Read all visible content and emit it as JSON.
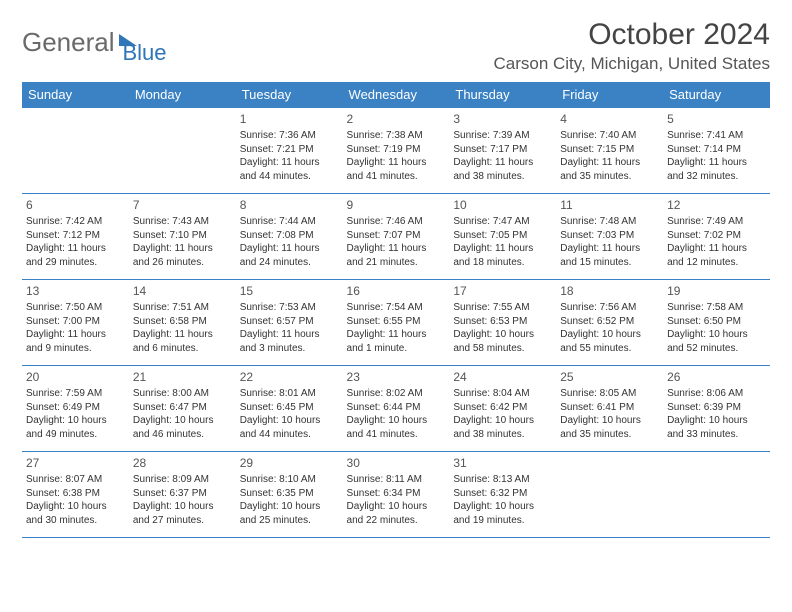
{
  "logo": {
    "text_gray": "General",
    "text_blue": "Blue"
  },
  "title": "October 2024",
  "location": "Carson City, Michigan, United States",
  "colors": {
    "header_bg": "#3a82c4",
    "header_text": "#ffffff",
    "border": "#3a82c4",
    "body_text": "#333333",
    "logo_gray": "#6a6a6a",
    "logo_blue": "#2f76b8"
  },
  "day_headers": [
    "Sunday",
    "Monday",
    "Tuesday",
    "Wednesday",
    "Thursday",
    "Friday",
    "Saturday"
  ],
  "weeks": [
    [
      null,
      null,
      {
        "n": "1",
        "sr": "Sunrise: 7:36 AM",
        "ss": "Sunset: 7:21 PM",
        "dl": "Daylight: 11 hours and 44 minutes."
      },
      {
        "n": "2",
        "sr": "Sunrise: 7:38 AM",
        "ss": "Sunset: 7:19 PM",
        "dl": "Daylight: 11 hours and 41 minutes."
      },
      {
        "n": "3",
        "sr": "Sunrise: 7:39 AM",
        "ss": "Sunset: 7:17 PM",
        "dl": "Daylight: 11 hours and 38 minutes."
      },
      {
        "n": "4",
        "sr": "Sunrise: 7:40 AM",
        "ss": "Sunset: 7:15 PM",
        "dl": "Daylight: 11 hours and 35 minutes."
      },
      {
        "n": "5",
        "sr": "Sunrise: 7:41 AM",
        "ss": "Sunset: 7:14 PM",
        "dl": "Daylight: 11 hours and 32 minutes."
      }
    ],
    [
      {
        "n": "6",
        "sr": "Sunrise: 7:42 AM",
        "ss": "Sunset: 7:12 PM",
        "dl": "Daylight: 11 hours and 29 minutes."
      },
      {
        "n": "7",
        "sr": "Sunrise: 7:43 AM",
        "ss": "Sunset: 7:10 PM",
        "dl": "Daylight: 11 hours and 26 minutes."
      },
      {
        "n": "8",
        "sr": "Sunrise: 7:44 AM",
        "ss": "Sunset: 7:08 PM",
        "dl": "Daylight: 11 hours and 24 minutes."
      },
      {
        "n": "9",
        "sr": "Sunrise: 7:46 AM",
        "ss": "Sunset: 7:07 PM",
        "dl": "Daylight: 11 hours and 21 minutes."
      },
      {
        "n": "10",
        "sr": "Sunrise: 7:47 AM",
        "ss": "Sunset: 7:05 PM",
        "dl": "Daylight: 11 hours and 18 minutes."
      },
      {
        "n": "11",
        "sr": "Sunrise: 7:48 AM",
        "ss": "Sunset: 7:03 PM",
        "dl": "Daylight: 11 hours and 15 minutes."
      },
      {
        "n": "12",
        "sr": "Sunrise: 7:49 AM",
        "ss": "Sunset: 7:02 PM",
        "dl": "Daylight: 11 hours and 12 minutes."
      }
    ],
    [
      {
        "n": "13",
        "sr": "Sunrise: 7:50 AM",
        "ss": "Sunset: 7:00 PM",
        "dl": "Daylight: 11 hours and 9 minutes."
      },
      {
        "n": "14",
        "sr": "Sunrise: 7:51 AM",
        "ss": "Sunset: 6:58 PM",
        "dl": "Daylight: 11 hours and 6 minutes."
      },
      {
        "n": "15",
        "sr": "Sunrise: 7:53 AM",
        "ss": "Sunset: 6:57 PM",
        "dl": "Daylight: 11 hours and 3 minutes."
      },
      {
        "n": "16",
        "sr": "Sunrise: 7:54 AM",
        "ss": "Sunset: 6:55 PM",
        "dl": "Daylight: 11 hours and 1 minute."
      },
      {
        "n": "17",
        "sr": "Sunrise: 7:55 AM",
        "ss": "Sunset: 6:53 PM",
        "dl": "Daylight: 10 hours and 58 minutes."
      },
      {
        "n": "18",
        "sr": "Sunrise: 7:56 AM",
        "ss": "Sunset: 6:52 PM",
        "dl": "Daylight: 10 hours and 55 minutes."
      },
      {
        "n": "19",
        "sr": "Sunrise: 7:58 AM",
        "ss": "Sunset: 6:50 PM",
        "dl": "Daylight: 10 hours and 52 minutes."
      }
    ],
    [
      {
        "n": "20",
        "sr": "Sunrise: 7:59 AM",
        "ss": "Sunset: 6:49 PM",
        "dl": "Daylight: 10 hours and 49 minutes."
      },
      {
        "n": "21",
        "sr": "Sunrise: 8:00 AM",
        "ss": "Sunset: 6:47 PM",
        "dl": "Daylight: 10 hours and 46 minutes."
      },
      {
        "n": "22",
        "sr": "Sunrise: 8:01 AM",
        "ss": "Sunset: 6:45 PM",
        "dl": "Daylight: 10 hours and 44 minutes."
      },
      {
        "n": "23",
        "sr": "Sunrise: 8:02 AM",
        "ss": "Sunset: 6:44 PM",
        "dl": "Daylight: 10 hours and 41 minutes."
      },
      {
        "n": "24",
        "sr": "Sunrise: 8:04 AM",
        "ss": "Sunset: 6:42 PM",
        "dl": "Daylight: 10 hours and 38 minutes."
      },
      {
        "n": "25",
        "sr": "Sunrise: 8:05 AM",
        "ss": "Sunset: 6:41 PM",
        "dl": "Daylight: 10 hours and 35 minutes."
      },
      {
        "n": "26",
        "sr": "Sunrise: 8:06 AM",
        "ss": "Sunset: 6:39 PM",
        "dl": "Daylight: 10 hours and 33 minutes."
      }
    ],
    [
      {
        "n": "27",
        "sr": "Sunrise: 8:07 AM",
        "ss": "Sunset: 6:38 PM",
        "dl": "Daylight: 10 hours and 30 minutes."
      },
      {
        "n": "28",
        "sr": "Sunrise: 8:09 AM",
        "ss": "Sunset: 6:37 PM",
        "dl": "Daylight: 10 hours and 27 minutes."
      },
      {
        "n": "29",
        "sr": "Sunrise: 8:10 AM",
        "ss": "Sunset: 6:35 PM",
        "dl": "Daylight: 10 hours and 25 minutes."
      },
      {
        "n": "30",
        "sr": "Sunrise: 8:11 AM",
        "ss": "Sunset: 6:34 PM",
        "dl": "Daylight: 10 hours and 22 minutes."
      },
      {
        "n": "31",
        "sr": "Sunrise: 8:13 AM",
        "ss": "Sunset: 6:32 PM",
        "dl": "Daylight: 10 hours and 19 minutes."
      },
      null,
      null
    ]
  ]
}
